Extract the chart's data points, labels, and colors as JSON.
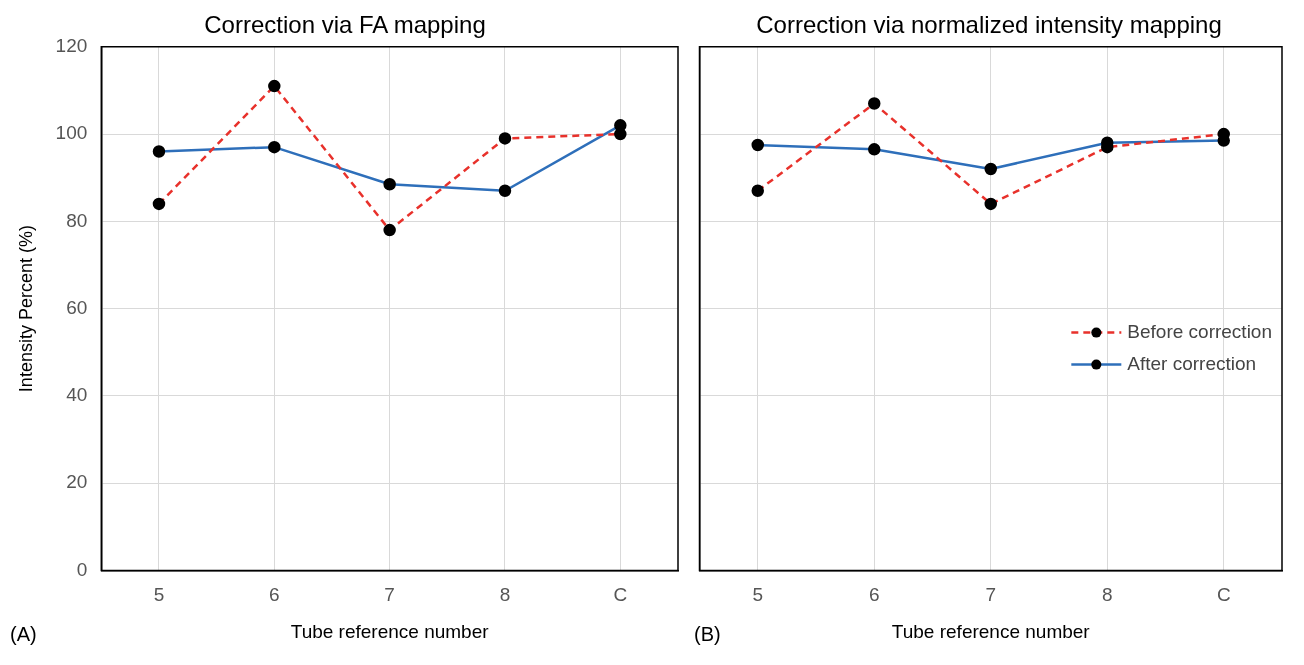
{
  "chart_data": [
    {
      "type": "line",
      "title": "Correction via FA mapping",
      "xlabel": "Tube reference number",
      "ylabel": "Intensity Percent (%)",
      "categories": [
        "5",
        "6",
        "7",
        "8",
        "C"
      ],
      "ylim": [
        0,
        120
      ],
      "yticks": [
        0,
        20,
        40,
        60,
        80,
        100,
        120
      ],
      "grid": true,
      "marker": "circle",
      "legend": false,
      "annotations": [
        "(A)"
      ],
      "series": [
        {
          "color": "#e8312b",
          "line_style": "dashed",
          "values": [
            84,
            111,
            78,
            99,
            100
          ]
        },
        {
          "color": "#2e6fba",
          "line_style": "solid",
          "values": [
            96,
            97,
            88.5,
            87,
            102
          ]
        }
      ]
    },
    {
      "type": "line",
      "title": "Correction via normalized intensity mapping",
      "xlabel": "Tube reference number",
      "categories": [
        "5",
        "6",
        "7",
        "8",
        "C"
      ],
      "ylim": [
        0,
        120
      ],
      "yticks": [
        0,
        20,
        40,
        60,
        80,
        100,
        120
      ],
      "grid": true,
      "marker": "circle",
      "legend": "right",
      "tick_labels": "x",
      "annotations": [
        "(B)"
      ],
      "series": [
        {
          "name": "Before correction",
          "color": "#e8312b",
          "line_style": "dashed",
          "values": [
            87,
            107,
            84,
            97,
            100
          ]
        },
        {
          "name": "After correction",
          "color": "#2e6fba",
          "line_style": "solid",
          "values": [
            97.5,
            96.5,
            92,
            98,
            98.5
          ]
        }
      ]
    }
  ]
}
